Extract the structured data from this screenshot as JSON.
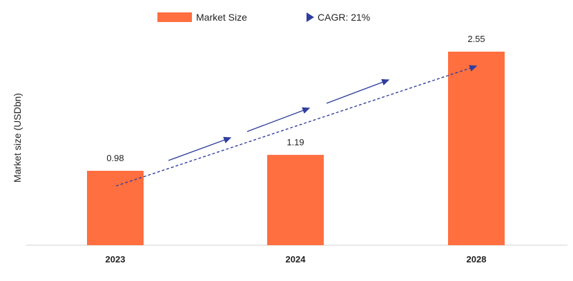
{
  "chart_data": {
    "type": "bar",
    "categories": [
      "2023",
      "2024",
      "2028"
    ],
    "values": [
      0.98,
      1.19,
      2.55
    ],
    "ylabel": "Market size (USDbn)",
    "xlabel": "",
    "ylim": [
      0,
      2.55
    ],
    "grid": false,
    "legend_position": "top-center",
    "series": [
      {
        "name": "Market Size",
        "values": [
          0.98,
          1.19,
          2.55
        ]
      }
    ],
    "trend": {
      "label": "CAGR: 21%"
    },
    "colors": {
      "bar": "#ff6f3f",
      "trend": "#2f3e9e",
      "axis": "#cccccc",
      "text": "#222222"
    }
  }
}
